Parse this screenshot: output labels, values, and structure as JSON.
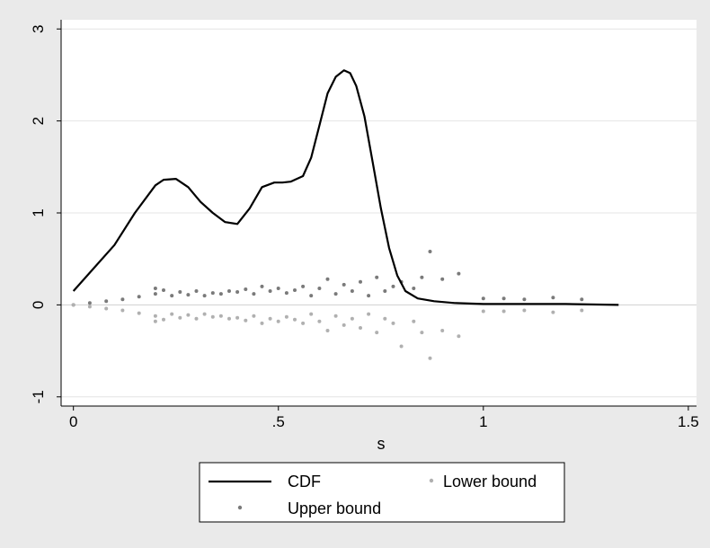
{
  "chart_data": {
    "type": "line",
    "title": "",
    "xlabel": "s",
    "ylabel": "",
    "xlim": [
      -0.03,
      1.52
    ],
    "ylim": [
      -1.1,
      3.1
    ],
    "x_ticks": [
      {
        "value": 0,
        "label": "0"
      },
      {
        "value": 0.5,
        "label": ".5"
      },
      {
        "value": 1,
        "label": "1"
      },
      {
        "value": 1.5,
        "label": "1.5"
      }
    ],
    "y_ticks": [
      {
        "value": -1,
        "label": "-1"
      },
      {
        "value": 0,
        "label": "0"
      },
      {
        "value": 1,
        "label": "1"
      },
      {
        "value": 2,
        "label": "2"
      },
      {
        "value": 3,
        "label": "3"
      }
    ],
    "grid": true,
    "legend_position": "bottom",
    "series": [
      {
        "name": "CDF",
        "kind": "line",
        "color": "#000000",
        "x": [
          0,
          0.05,
          0.1,
          0.15,
          0.2,
          0.22,
          0.25,
          0.28,
          0.31,
          0.34,
          0.37,
          0.4,
          0.43,
          0.46,
          0.49,
          0.51,
          0.53,
          0.56,
          0.58,
          0.6,
          0.62,
          0.64,
          0.66,
          0.675,
          0.69,
          0.71,
          0.73,
          0.75,
          0.77,
          0.79,
          0.81,
          0.84,
          0.88,
          0.93,
          1.0,
          1.1,
          1.2,
          1.33
        ],
        "y": [
          0.15,
          0.4,
          0.65,
          1.0,
          1.3,
          1.36,
          1.37,
          1.28,
          1.12,
          1.0,
          0.9,
          0.88,
          1.05,
          1.28,
          1.33,
          1.33,
          1.34,
          1.4,
          1.6,
          1.95,
          2.3,
          2.48,
          2.55,
          2.52,
          2.38,
          2.05,
          1.55,
          1.05,
          0.62,
          0.32,
          0.15,
          0.07,
          0.04,
          0.02,
          0.01,
          0.01,
          0.01,
          0.0
        ]
      },
      {
        "name": "Upper bound",
        "kind": "scatter",
        "color": "#7a7a7a",
        "x": [
          0.0,
          0.04,
          0.08,
          0.12,
          0.16,
          0.2,
          0.2,
          0.22,
          0.24,
          0.26,
          0.28,
          0.3,
          0.32,
          0.34,
          0.36,
          0.38,
          0.4,
          0.42,
          0.44,
          0.46,
          0.48,
          0.5,
          0.52,
          0.54,
          0.56,
          0.58,
          0.6,
          0.62,
          0.64,
          0.66,
          0.68,
          0.7,
          0.72,
          0.74,
          0.76,
          0.78,
          0.8,
          0.83,
          0.85,
          0.87,
          0.9,
          0.94,
          1.0,
          1.05,
          1.1,
          1.17,
          1.24
        ],
        "y": [
          0.0,
          0.02,
          0.04,
          0.06,
          0.09,
          0.18,
          0.12,
          0.16,
          0.1,
          0.14,
          0.11,
          0.15,
          0.1,
          0.13,
          0.12,
          0.15,
          0.14,
          0.17,
          0.12,
          0.2,
          0.15,
          0.18,
          0.13,
          0.16,
          0.2,
          0.1,
          0.18,
          0.28,
          0.12,
          0.22,
          0.15,
          0.25,
          0.1,
          0.3,
          0.15,
          0.2,
          0.25,
          0.18,
          0.3,
          0.58,
          0.28,
          0.34,
          0.07,
          0.07,
          0.06,
          0.08,
          0.06
        ]
      },
      {
        "name": "Lower bound",
        "kind": "scatter",
        "color": "#b0b0b0",
        "x": [
          0.0,
          0.04,
          0.08,
          0.12,
          0.16,
          0.2,
          0.2,
          0.22,
          0.24,
          0.26,
          0.28,
          0.3,
          0.32,
          0.34,
          0.36,
          0.38,
          0.4,
          0.42,
          0.44,
          0.46,
          0.48,
          0.5,
          0.52,
          0.54,
          0.56,
          0.58,
          0.6,
          0.62,
          0.64,
          0.66,
          0.68,
          0.7,
          0.72,
          0.74,
          0.76,
          0.78,
          0.8,
          0.83,
          0.85,
          0.87,
          0.9,
          0.94,
          1.0,
          1.05,
          1.1,
          1.17,
          1.24
        ],
        "y": [
          0.0,
          -0.02,
          -0.04,
          -0.06,
          -0.09,
          -0.18,
          -0.12,
          -0.16,
          -0.1,
          -0.14,
          -0.11,
          -0.15,
          -0.1,
          -0.13,
          -0.12,
          -0.15,
          -0.14,
          -0.17,
          -0.12,
          -0.2,
          -0.15,
          -0.18,
          -0.13,
          -0.16,
          -0.2,
          -0.1,
          -0.18,
          -0.28,
          -0.12,
          -0.22,
          -0.15,
          -0.25,
          -0.1,
          -0.3,
          -0.15,
          -0.2,
          -0.45,
          -0.18,
          -0.3,
          -0.58,
          -0.28,
          -0.34,
          -0.07,
          -0.07,
          -0.06,
          -0.08,
          -0.06
        ]
      }
    ],
    "legend": [
      {
        "label": "CDF",
        "kind": "line",
        "color": "#000000"
      },
      {
        "label": "Lower bound",
        "kind": "marker",
        "color": "#b0b0b0"
      },
      {
        "label": "Upper bound",
        "kind": "marker",
        "color": "#7a7a7a"
      }
    ],
    "colors": {
      "outer_background": "#eaeaea",
      "plot_background": "#ffffff",
      "gridline": "#e4e4e4",
      "zero_line": "#d0d0d0"
    }
  }
}
